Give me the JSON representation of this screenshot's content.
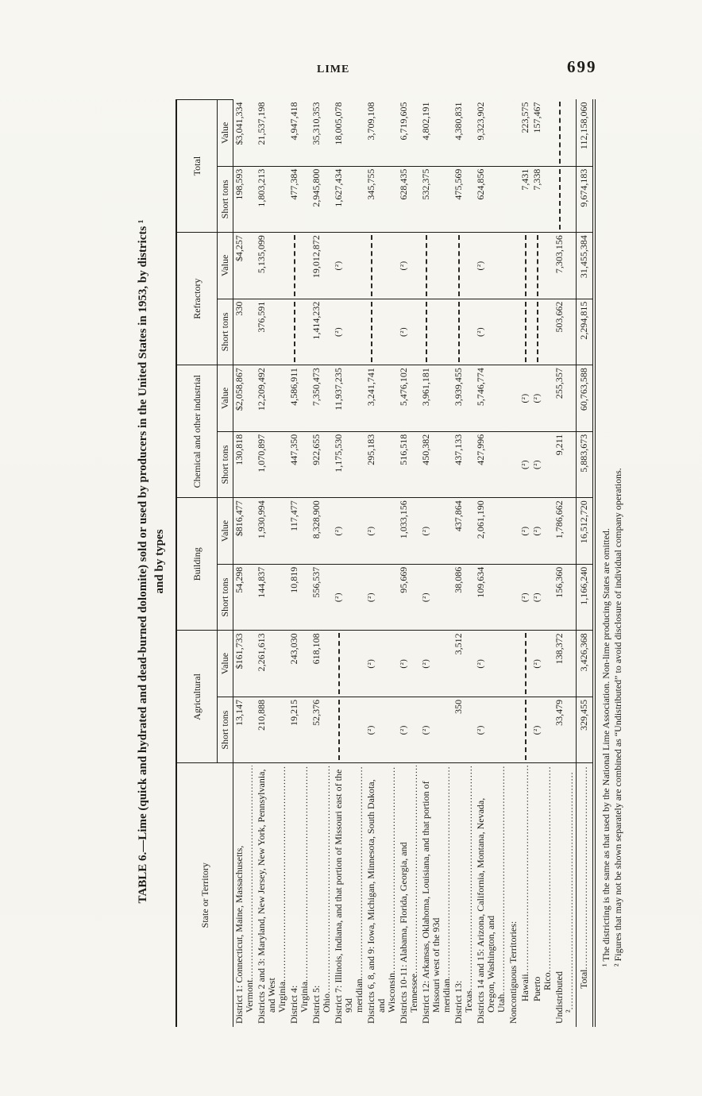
{
  "page": {
    "running_head": "LIME",
    "page_number": "699"
  },
  "title": {
    "line1": "TABLE 6.—Lime (quick and hydrated and dead-burned dolomite) sold or used by producers in the United States in 1953, by districts ¹",
    "line2": "and by types"
  },
  "table": {
    "row_header": "State or Territory",
    "groups": [
      {
        "label": "Agricultural"
      },
      {
        "label": "Building"
      },
      {
        "label": "Chemical and other industrial"
      },
      {
        "label": "Refractory"
      },
      {
        "label": "Total"
      }
    ],
    "subheaders": [
      "Short tons",
      "Value"
    ],
    "rows": [
      {
        "label": "District 1: Connecticut, Maine, Massachusetts, Vermont",
        "type": "data",
        "indent": 0,
        "cells": [
          "13,147",
          "$161,733",
          "54,298",
          "$816,477",
          "130,818",
          "$2,058,867",
          "330",
          "$4,257",
          "198,593",
          "$3,041,334"
        ]
      },
      {
        "label": "Districts 2 and 3: Maryland, New Jersey, New York, Pennsylvania, and West Virginia",
        "type": "data",
        "indent": 0,
        "cells": [
          "210,888",
          "2,261,613",
          "144,837",
          "1,930,994",
          "1,070,897",
          "12,209,492",
          "376,591",
          "5,135,099",
          "1,803,213",
          "21,537,198"
        ]
      },
      {
        "label": "District 4: Virginia",
        "type": "data",
        "indent": 0,
        "cells": [
          "19,215",
          "243,030",
          "10,819",
          "117,477",
          "447,350",
          "4,586,911",
          null,
          null,
          "477,384",
          "4,947,418"
        ]
      },
      {
        "label": "District 5: Ohio",
        "type": "data",
        "indent": 0,
        "cells": [
          "52,376",
          "618,108",
          "556,537",
          "8,328,900",
          "922,655",
          "7,350,473",
          "1,414,232",
          "19,012,872",
          "2,945,800",
          "35,310,353"
        ]
      },
      {
        "label": "District 7: Illinois, Indiana, and that portion of Missouri east of the 93d meridian",
        "type": "data",
        "indent": 0,
        "cells": [
          null,
          null,
          "(²)",
          "(²)",
          "1,175,530",
          "11,937,235",
          "(²)",
          "(²)",
          "1,627,434",
          "18,005,078"
        ]
      },
      {
        "label": "Districts 6, 8, and 9: Iowa, Michigan, Minnesota, South Dakota, and Wisconsin",
        "type": "data",
        "indent": 0,
        "cells": [
          "(²)",
          "(²)",
          "(²)",
          "(²)",
          "295,183",
          "3,241,741",
          null,
          null,
          "345,755",
          "3,709,108"
        ]
      },
      {
        "label": "Districts 10-11: Alabama, Florida, Georgia, and Tennessee",
        "type": "data",
        "indent": 0,
        "cells": [
          "(²)",
          "(²)",
          "95,669",
          "1,033,156",
          "516,518",
          "5,476,102",
          "(²)",
          "(²)",
          "628,435",
          "6,719,605"
        ]
      },
      {
        "label": "District 12: Arkansas, Oklahoma, Louisiana, and that portion of Missouri west of the 93d meridian",
        "type": "data",
        "indent": 0,
        "cells": [
          "(²)",
          "(²)",
          "(²)",
          "(²)",
          "450,382",
          "3,961,181",
          null,
          null,
          "532,375",
          "4,802,191"
        ]
      },
      {
        "label": "District 13: Texas",
        "type": "data",
        "indent": 0,
        "cells": [
          "350",
          "3,512",
          "38,086",
          "437,864",
          "437,133",
          "3,939,455",
          null,
          null,
          "475,569",
          "4,380,831"
        ]
      },
      {
        "label": "Districts 14 and 15: Arizona, California, Montana, Nevada, Oregon, Washington, and Utah",
        "type": "data",
        "indent": 0,
        "cells": [
          "(²)",
          "(²)",
          "109,634",
          "2,061,190",
          "427,996",
          "5,746,774",
          "(²)",
          "(²)",
          "624,856",
          "9,323,902"
        ]
      },
      {
        "label": "Noncontiguous Territories:",
        "type": "section",
        "indent": 0,
        "cells": []
      },
      {
        "label": "Hawaii",
        "type": "data",
        "indent": 1,
        "cells": [
          null,
          null,
          "(²)",
          "(²)",
          "(²)",
          "(²)",
          null,
          null,
          "7,431",
          "223,575"
        ]
      },
      {
        "label": "Puerto Rico",
        "type": "data",
        "indent": 1,
        "cells": [
          "(²)",
          "(²)",
          "(²)",
          "(²)",
          "(²)",
          "(²)",
          null,
          null,
          "7,338",
          "157,467"
        ]
      },
      {
        "label": "Undistributed ²",
        "type": "data",
        "indent": 0,
        "cells": [
          "33,479",
          "138,372",
          "156,360",
          "1,786,662",
          "9,211",
          "255,357",
          "503,662",
          "7,303,156",
          null,
          null
        ]
      },
      {
        "label": "Total",
        "type": "total",
        "indent": 3,
        "cells": [
          "329,455",
          "3,426,368",
          "1,166,240",
          "16,512,720",
          "5,883,673",
          "60,763,588",
          "2,294,815",
          "31,455,384",
          "9,674,183",
          "112,158,060"
        ]
      }
    ]
  },
  "footnotes": [
    "¹ The districting is the same as that used by the National Lime Association.  Non-lime producing States are omitted.",
    "² Figures that may not be shown separately are combined as “Undistributed” to avoid disclosure of individual company operations."
  ]
}
